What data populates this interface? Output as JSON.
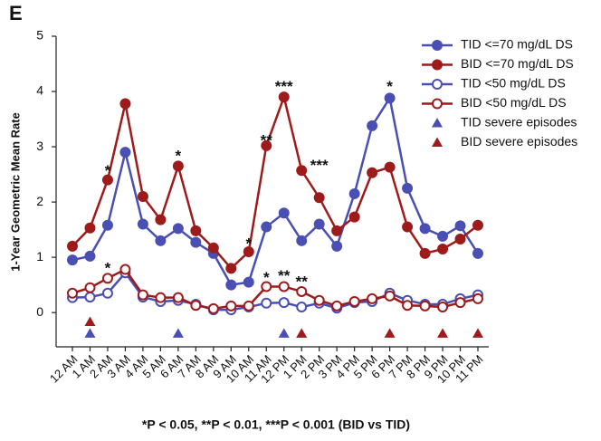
{
  "chart_data": {
    "type": "line",
    "panel_label": "E",
    "ylabel": "1-Year Geometric Mean Rate",
    "footnote": "*P < 0.05, **P < 0.01, ***P < 0.001 (BID vs TID)",
    "categories": [
      "12 AM",
      "1 AM",
      "2 AM",
      "3 AM",
      "4 AM",
      "5 AM",
      "6 AM",
      "7 AM",
      "8 AM",
      "9 AM",
      "10 AM",
      "11 AM",
      "12 PM",
      "1 PM",
      "2 PM",
      "3 PM",
      "4 PM",
      "5 PM",
      "6 PM",
      "7 PM",
      "8 PM",
      "9 PM",
      "10 PM",
      "11 PM"
    ],
    "ylim": [
      -0.62,
      5
    ],
    "yticks": [
      0,
      1,
      2,
      3,
      4,
      5
    ],
    "legend": "upper right",
    "series": [
      {
        "name": "TID <=70 mg/dL DS",
        "color": "#4a4fb3",
        "marker": "circle",
        "filled": true,
        "line": true,
        "values": [
          0.95,
          1.02,
          1.58,
          2.9,
          1.6,
          1.3,
          1.52,
          1.27,
          1.07,
          0.5,
          0.55,
          1.55,
          1.8,
          1.3,
          1.6,
          1.2,
          2.15,
          3.38,
          3.88,
          2.25,
          1.52,
          1.38,
          1.57,
          1.07
        ]
      },
      {
        "name": "BID <=70 mg/dL DS",
        "color": "#9e1b1b",
        "marker": "circle",
        "filled": true,
        "line": true,
        "values": [
          1.2,
          1.53,
          2.4,
          3.78,
          2.1,
          1.68,
          2.65,
          1.48,
          1.17,
          0.8,
          1.1,
          3.02,
          3.9,
          2.57,
          2.08,
          1.48,
          1.73,
          2.53,
          2.63,
          1.55,
          1.07,
          1.15,
          1.33,
          1.58
        ]
      },
      {
        "name": "TID <50 mg/dL DS",
        "color": "#4a4fb3",
        "marker": "circle",
        "filled": false,
        "line": true,
        "values": [
          0.27,
          0.28,
          0.35,
          0.72,
          0.28,
          0.2,
          0.22,
          0.15,
          0.05,
          0.05,
          0.1,
          0.17,
          0.18,
          0.1,
          0.17,
          0.08,
          0.18,
          0.2,
          0.35,
          0.22,
          0.15,
          0.15,
          0.25,
          0.32
        ]
      },
      {
        "name": "BID <50 mg/dL DS",
        "color": "#9e1b1b",
        "marker": "circle",
        "filled": false,
        "line": true,
        "values": [
          0.35,
          0.45,
          0.62,
          0.78,
          0.32,
          0.27,
          0.27,
          0.13,
          0.07,
          0.12,
          0.12,
          0.47,
          0.47,
          0.38,
          0.22,
          0.12,
          0.2,
          0.25,
          0.3,
          0.13,
          0.12,
          0.1,
          0.18,
          0.25
        ]
      },
      {
        "name": "TID severe episodes",
        "color": "#4a4fb3",
        "marker": "triangle",
        "filled": true,
        "line": false,
        "values": [
          null,
          -0.38,
          null,
          null,
          null,
          null,
          -0.38,
          null,
          null,
          null,
          null,
          null,
          -0.38,
          null,
          null,
          null,
          null,
          null,
          null,
          null,
          null,
          null,
          null,
          null
        ]
      },
      {
        "name": "BID severe episodes",
        "color": "#9e1b1b",
        "marker": "triangle",
        "filled": true,
        "line": false,
        "values": [
          null,
          -0.17,
          null,
          null,
          null,
          null,
          null,
          null,
          null,
          null,
          null,
          null,
          null,
          -0.38,
          null,
          null,
          null,
          null,
          -0.38,
          null,
          null,
          -0.38,
          null,
          -0.38
        ]
      }
    ],
    "annotations": [
      {
        "text": "*",
        "x": "2 AM",
        "y": 2.55
      },
      {
        "text": "*",
        "x": "6 AM",
        "y": 2.82
      },
      {
        "text": "*",
        "x": "10 AM",
        "y": 1.23
      },
      {
        "text": "**",
        "x": "11 AM",
        "y": 3.1
      },
      {
        "text": "***",
        "x": "12 PM",
        "y": 4.07
      },
      {
        "text": "***",
        "x": "2 PM",
        "y": 2.65
      },
      {
        "text": "*",
        "x": "6 PM",
        "y": 4.07
      },
      {
        "text": "*",
        "x": "2 AM",
        "y": 0.79
      },
      {
        "text": "*",
        "x": "11 AM",
        "y": 0.62
      },
      {
        "text": "**",
        "x": "12 PM",
        "y": 0.65
      },
      {
        "text": "**",
        "x": "1 PM",
        "y": 0.54
      }
    ]
  }
}
